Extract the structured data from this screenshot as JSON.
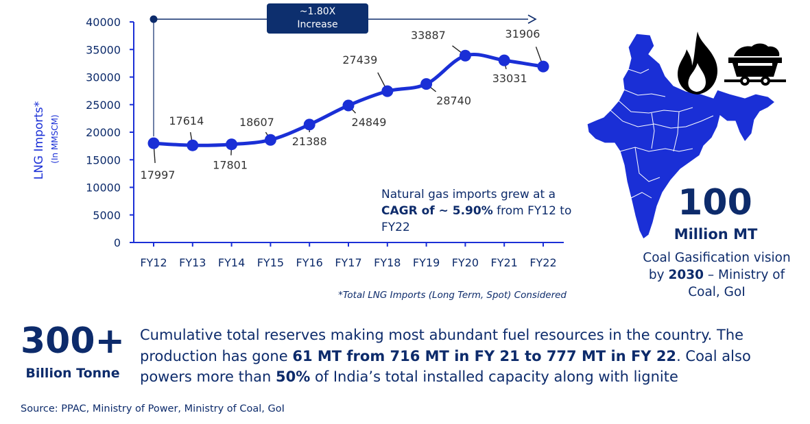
{
  "chart_data": {
    "type": "line",
    "categories": [
      "FY12",
      "FY13",
      "FY14",
      "FY15",
      "FY16",
      "FY17",
      "FY18",
      "FY19",
      "FY20",
      "FY21",
      "FY22"
    ],
    "series": [
      {
        "values": [
          17997,
          17614,
          17801,
          18607,
          21388,
          24849,
          27439,
          28740,
          33887,
          33031,
          31906
        ]
      }
    ],
    "ylabel": "LNG Imports*",
    "ylabel_unit": "(In MMSCM)",
    "yticks": [
      0,
      5000,
      10000,
      15000,
      20000,
      25000,
      30000,
      35000,
      40000
    ],
    "ylim": [
      0,
      40000
    ],
    "grid": false,
    "line_color": "#1a2fd6"
  },
  "increase_box": {
    "line1": "~1.80X",
    "line2": "Increase"
  },
  "note": {
    "part1": "Natural gas imports grew at a ",
    "bold": "CAGR of ~ 5.90%",
    "part2": " from FY12 to FY22"
  },
  "footnote": "*Total LNG Imports (Long Term, Spot) Considered",
  "coal_reserves": {
    "value": "300+",
    "unit": "Billion Tonne",
    "text1": "Cumulative total reserves making most abundant fuel resources in the country. The production has gone ",
    "bold1": "61 MT from 716 MT in FY 21 to 777 MT in FY 22",
    "text2": ". Coal also powers more than ",
    "bold2": "50%",
    "text3": " of India’s total installed capacity along with lignite"
  },
  "gasification": {
    "value": "100",
    "unit": "Million MT",
    "text1": "Coal Gasification vision by ",
    "bold": "2030",
    "text2": " – Ministry of Coal, GoI"
  },
  "icons": {
    "map": "india-map-icon",
    "flame": "flame-icon",
    "cart": "coal-cart-icon"
  },
  "colors": {
    "accent": "#1a2fd6",
    "navy": "#0d2b6b",
    "box": "#0d2f6e"
  },
  "source": "Source: PPAC, Ministry of Power, Ministry of Coal, GoI"
}
